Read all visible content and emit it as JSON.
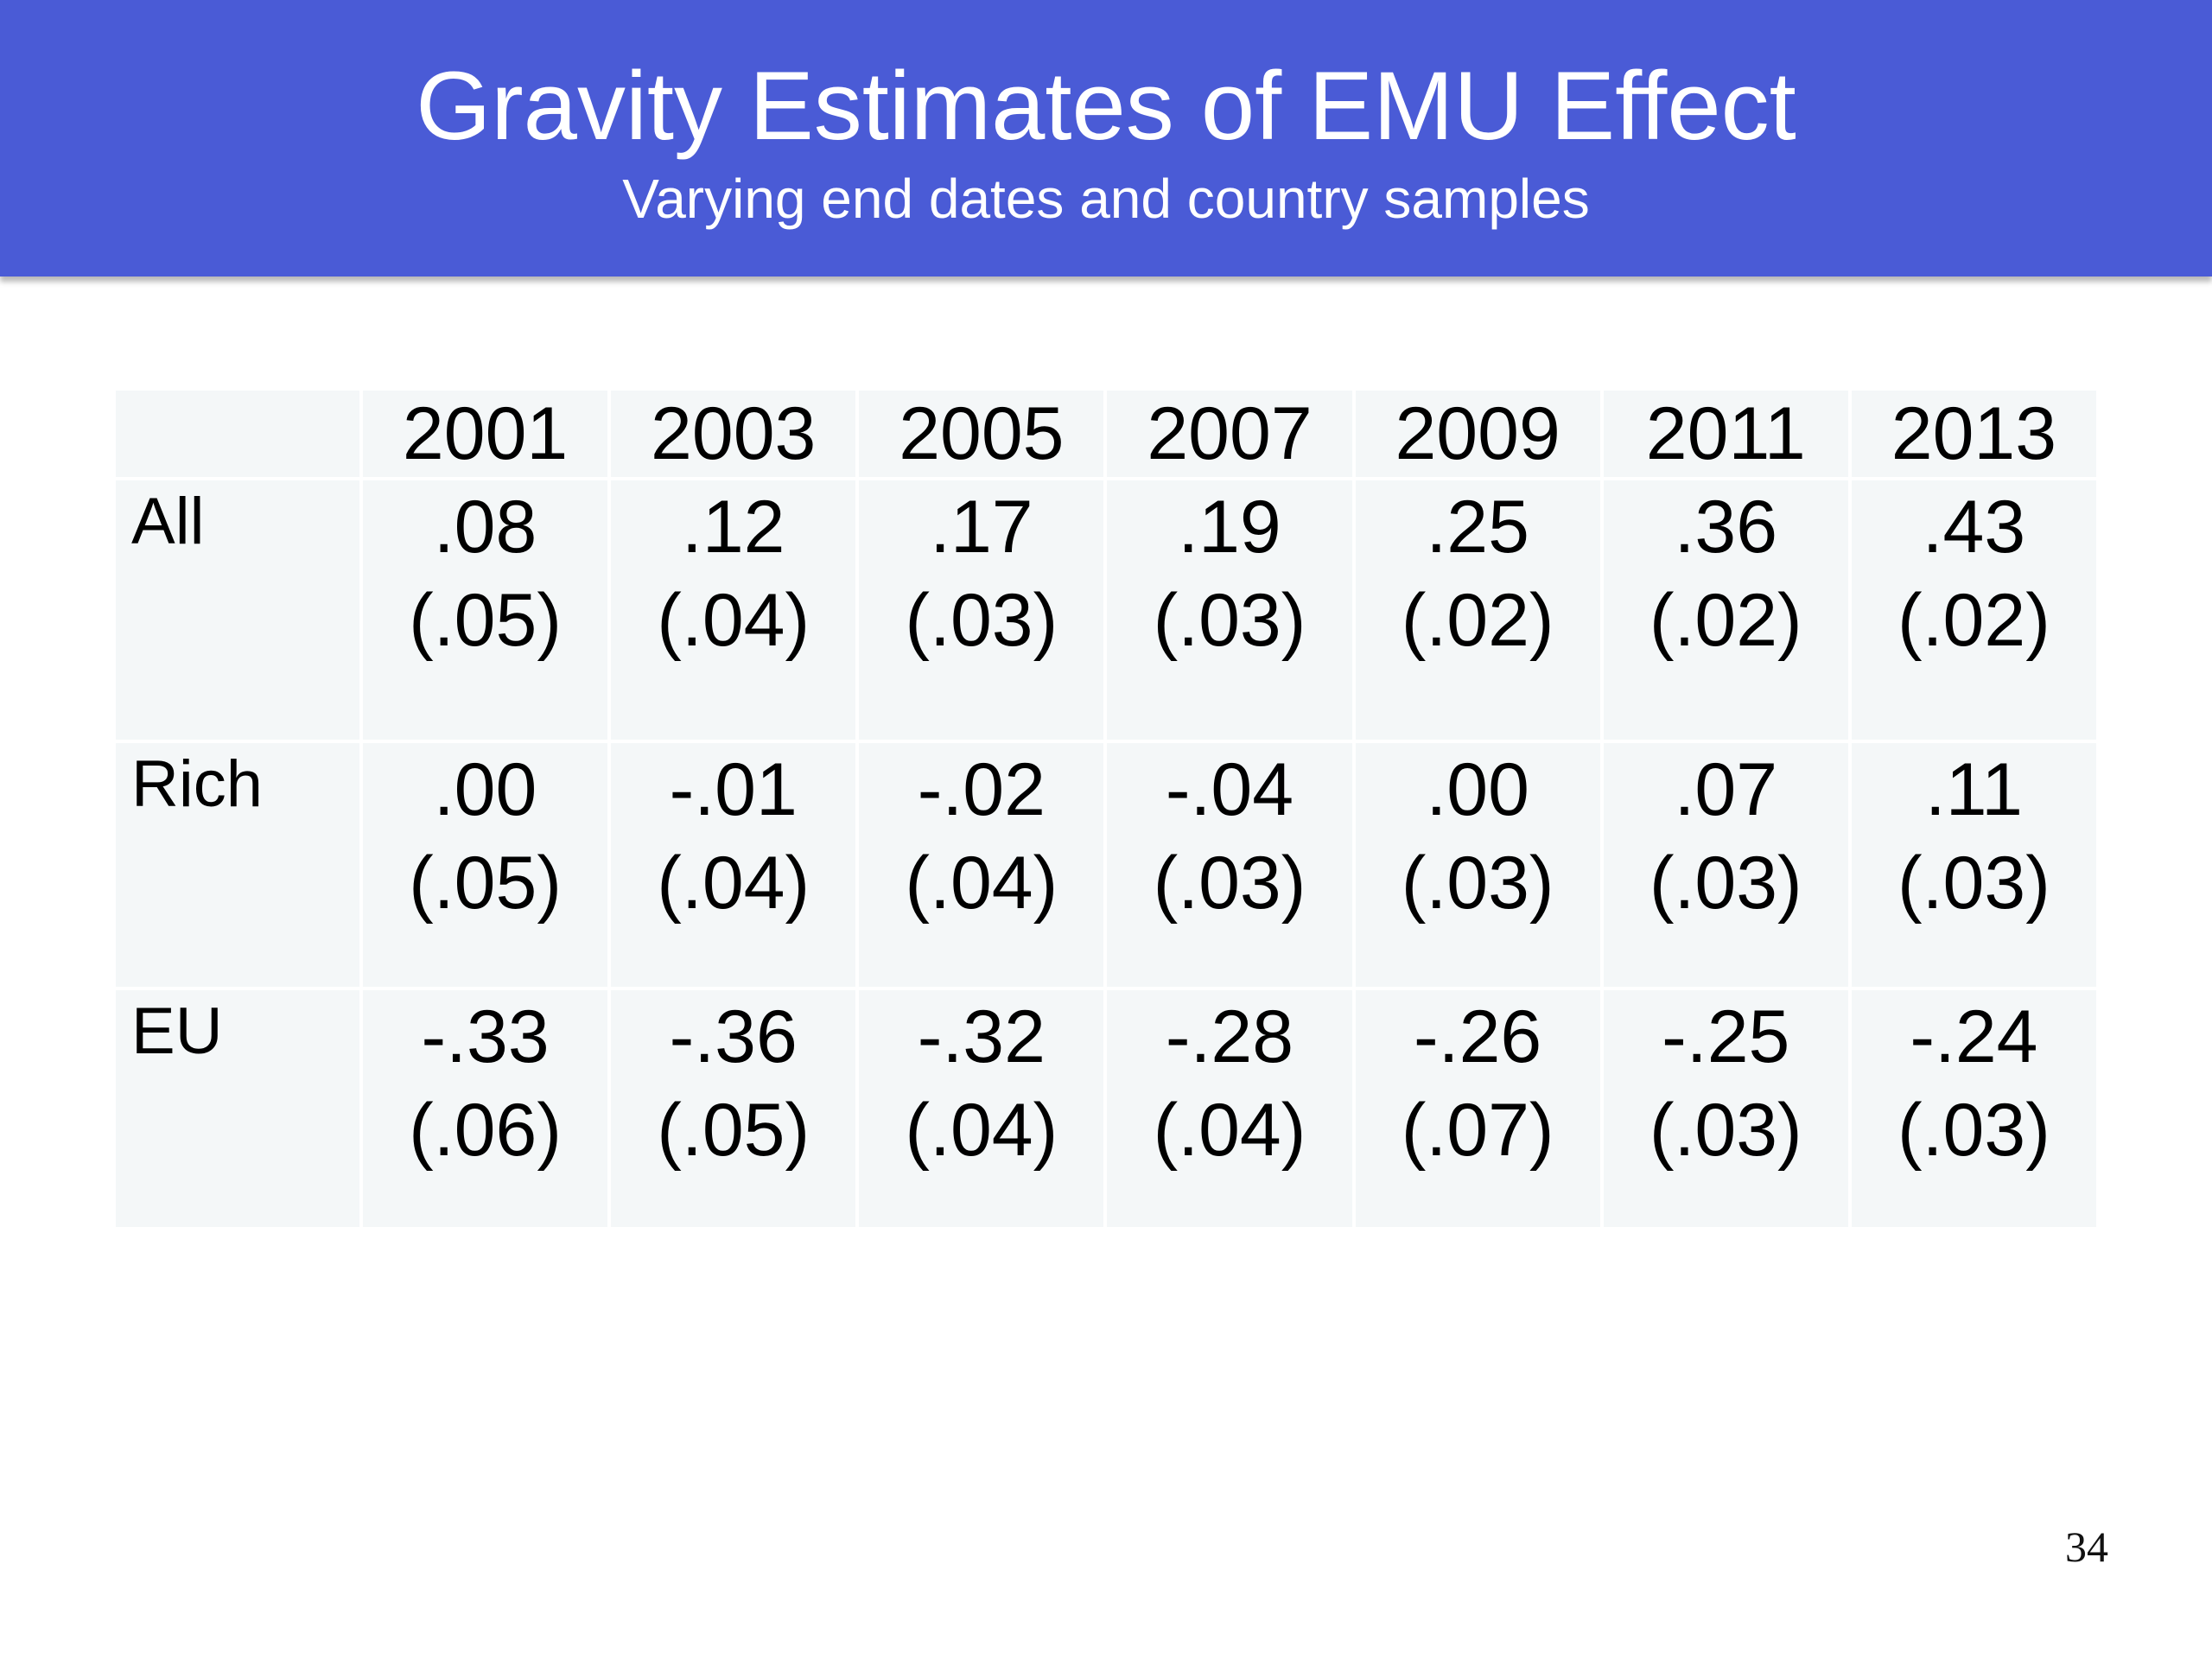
{
  "header": {
    "title": "Gravity Estimates of EMU Effect",
    "subtitle": "Varying end dates and country samples"
  },
  "table": {
    "years": [
      "2001",
      "2003",
      "2005",
      "2007",
      "2009",
      "2011",
      "2013"
    ],
    "rows": [
      {
        "label": "All",
        "estimates": [
          ".08",
          ".12",
          ".17",
          ".19",
          ".25",
          ".36",
          ".43"
        ],
        "std_errors": [
          "(.05)",
          "(.04)",
          "(.03)",
          "(.03)",
          "(.02)",
          "(.02)",
          "(.02)"
        ]
      },
      {
        "label": "Rich",
        "estimates": [
          ".00",
          "-.01",
          "-.02",
          "-.04",
          ".00",
          ".07",
          ".11"
        ],
        "std_errors": [
          "(.05)",
          "(.04)",
          "(.04)",
          "(.03)",
          "(.03)",
          "(.03)",
          "(.03)"
        ]
      },
      {
        "label": "EU",
        "estimates": [
          "-.33",
          "-.36",
          "-.32",
          "-.28",
          "-.26",
          "-.25",
          "-.24"
        ],
        "std_errors": [
          "(.06)",
          "(.05)",
          "(.04)",
          "(.04)",
          "(.07)",
          "(.03)",
          "(.03)"
        ]
      }
    ]
  },
  "footer": {
    "page_number": "34"
  },
  "colors": {
    "header_bg": "#4a5bd6",
    "cell_bg": "#f4f7f8"
  }
}
